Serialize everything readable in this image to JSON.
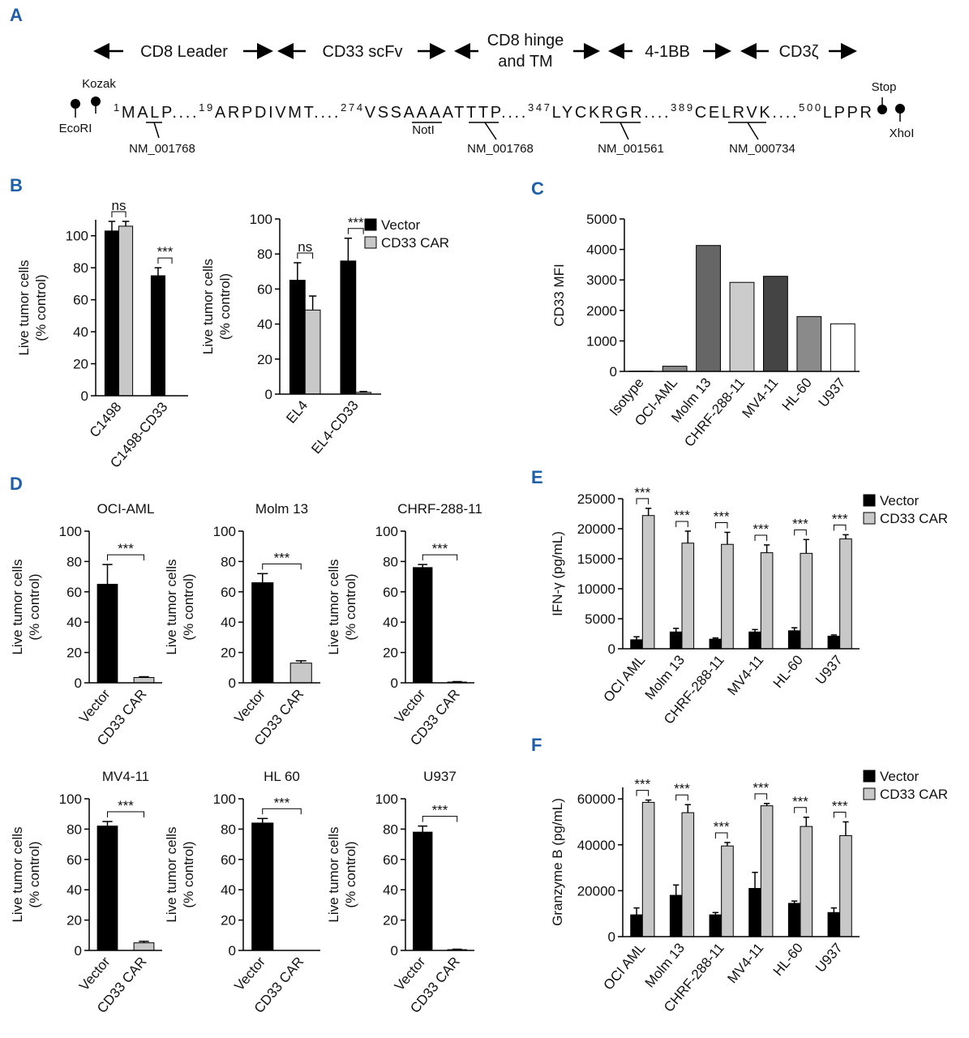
{
  "panels": [
    "A",
    "B",
    "C",
    "D",
    "E",
    "F"
  ],
  "diagram": {
    "domains": [
      "CD8 Leader",
      "CD33 scFv",
      [
        "CD8 hinge",
        "and TM"
      ],
      "4-1BB",
      "CD3ζ"
    ],
    "sites": {
      "kozak": "Kozak",
      "ecori": "EcoRI",
      "noti": "NotI",
      "stop": "Stop",
      "xhoi": "XhoI"
    },
    "sequence": [
      {
        "position": "1",
        "residues": "MALP...."
      },
      {
        "position": "19",
        "residues": "ARPDIVMT...."
      },
      {
        "position": "274",
        "residues": "VSSAAAATTTP...."
      },
      {
        "position": "347",
        "residues": "LYCKRGR...."
      },
      {
        "position": "389",
        "residues": "CELRVK...."
      },
      {
        "position": "500",
        "residues": "LPPR"
      }
    ],
    "accessions": [
      "NM_001768",
      "NM_001768",
      "NM_001561",
      "NM_000734"
    ]
  },
  "chart_data": [
    {
      "type": "bar",
      "ylabel": [
        "Live tumor cells",
        "(% control)"
      ],
      "categories": [
        "C1498",
        "C1498-CD33"
      ],
      "series": [
        {
          "color": "#000000",
          "values": [
            103,
            75
          ],
          "errors": [
            6,
            5
          ]
        },
        {
          "color": "#c8c8c8",
          "values": [
            106,
            0
          ],
          "errors": [
            3,
            null
          ]
        }
      ],
      "annotations": [
        "ns",
        "***"
      ],
      "ylim": [
        0,
        110
      ],
      "yticks": [
        0,
        20,
        40,
        60,
        80,
        100
      ]
    },
    {
      "type": "bar",
      "ylabel": [
        "Live tumor cells",
        "(% control)"
      ],
      "categories": [
        "EL4",
        "EL4-CD33"
      ],
      "series": [
        {
          "name": "Vector",
          "color": "#000000",
          "values": [
            65,
            76
          ],
          "errors": [
            10,
            13
          ]
        },
        {
          "name": "CD33 CAR",
          "color": "#c8c8c8",
          "values": [
            48,
            1
          ],
          "errors": [
            8,
            0.5
          ]
        }
      ],
      "annotations": [
        "ns",
        "***"
      ],
      "ylim": [
        0,
        100
      ],
      "yticks": [
        0,
        20,
        40,
        60,
        80,
        100
      ]
    },
    {
      "type": "bar",
      "ylabel": [
        "CD33 MFI"
      ],
      "categories": [
        "Isotype",
        "OCI-AML",
        "Molm 13",
        "CHRF-288-11",
        "MV4-11",
        "HL-60",
        "U937"
      ],
      "values": [
        10,
        170,
        4130,
        2920,
        3120,
        1800,
        1560
      ],
      "colors": [
        "#999999",
        "#888888",
        "#666666",
        "#cccccc",
        "#444444",
        "#8a8a8a",
        "#ffffff"
      ],
      "ylim": [
        0,
        5000
      ],
      "yticks": [
        0,
        1000,
        2000,
        3000,
        4000,
        5000
      ]
    },
    {
      "type": "bar",
      "title": "OCI-AML",
      "ylabel": [
        "Live tumor cells",
        "(% control)"
      ],
      "categories": [
        "Vector",
        "CD33 CAR"
      ],
      "values": [
        65,
        3.5
      ],
      "errors": [
        13,
        0.5
      ],
      "colors": [
        "#000000",
        "#c8c8c8"
      ],
      "annotations": [
        "***"
      ],
      "ylim": [
        0,
        100
      ],
      "yticks": [
        0,
        20,
        40,
        60,
        80,
        100
      ]
    },
    {
      "type": "bar",
      "title": "Molm 13",
      "ylabel": [
        "Live tumor cells",
        "(% control)"
      ],
      "categories": [
        "Vector",
        "CD33 CAR"
      ],
      "values": [
        66,
        13
      ],
      "errors": [
        6,
        1.5
      ],
      "colors": [
        "#000000",
        "#c8c8c8"
      ],
      "annotations": [
        "***"
      ],
      "ylim": [
        0,
        100
      ],
      "yticks": [
        0,
        20,
        40,
        60,
        80,
        100
      ]
    },
    {
      "type": "bar",
      "title": "CHRF-288-11",
      "ylabel": [
        "Live tumor cells",
        "(% control)"
      ],
      "categories": [
        "Vector",
        "CD33 CAR"
      ],
      "values": [
        76,
        0.5
      ],
      "errors": [
        2,
        0.3
      ],
      "colors": [
        "#000000",
        "#c8c8c8"
      ],
      "annotations": [
        "***"
      ],
      "ylim": [
        0,
        100
      ],
      "yticks": [
        0,
        20,
        40,
        60,
        80,
        100
      ]
    },
    {
      "type": "bar",
      "title": "MV4-11",
      "ylabel": [
        "Live tumor cells",
        "(% control)"
      ],
      "categories": [
        "Vector",
        "CD33 CAR"
      ],
      "values": [
        82,
        5
      ],
      "errors": [
        3,
        1
      ],
      "colors": [
        "#000000",
        "#c8c8c8"
      ],
      "annotations": [
        "***"
      ],
      "ylim": [
        0,
        100
      ],
      "yticks": [
        0,
        20,
        40,
        60,
        80,
        100
      ]
    },
    {
      "type": "bar",
      "title": "HL 60",
      "ylabel": [
        "Live tumor cells",
        "(% control)"
      ],
      "categories": [
        "Vector",
        "CD33 CAR"
      ],
      "values": [
        84,
        0
      ],
      "errors": [
        3,
        null
      ],
      "colors": [
        "#000000",
        "#c8c8c8"
      ],
      "annotations": [
        "***"
      ],
      "ylim": [
        0,
        100
      ],
      "yticks": [
        0,
        20,
        40,
        60,
        80,
        100
      ]
    },
    {
      "type": "bar",
      "title": "U937",
      "ylabel": [
        "Live tumor cells",
        "(% control)"
      ],
      "categories": [
        "Vector",
        "CD33 CAR"
      ],
      "values": [
        78,
        0.5
      ],
      "errors": [
        4,
        0.3
      ],
      "colors": [
        "#000000",
        "#c8c8c8"
      ],
      "annotations": [
        "***"
      ],
      "ylim": [
        0,
        100
      ],
      "yticks": [
        0,
        20,
        40,
        60,
        80,
        100
      ]
    },
    {
      "type": "bar",
      "ylabel": [
        "IFN-γ (pg/mL)"
      ],
      "categories": [
        "OCI AML",
        "Molm 13",
        "CHRF-288-11",
        "MV4-11",
        "HL-60",
        "U937"
      ],
      "series": [
        {
          "name": "Vector",
          "color": "#000000",
          "values": [
            1500,
            2800,
            1600,
            2800,
            3000,
            2100
          ],
          "errors": [
            500,
            600,
            200,
            400,
            500,
            200
          ]
        },
        {
          "name": "CD33 CAR",
          "color": "#c8c8c8",
          "values": [
            22200,
            17600,
            17400,
            16000,
            15900,
            18300
          ],
          "errors": [
            1200,
            2000,
            2000,
            1300,
            2300,
            700
          ]
        }
      ],
      "annotations": [
        "***",
        "***",
        "***",
        "***",
        "***",
        "***"
      ],
      "ylim": [
        0,
        25000
      ],
      "yticks": [
        0,
        5000,
        10000,
        15000,
        20000,
        25000
      ]
    },
    {
      "type": "bar",
      "ylabel": [
        "Granzyme B (pg/mL)"
      ],
      "categories": [
        "OCI AML",
        "Molm 13",
        "CHRF-288-11",
        "MV4-11",
        "HL-60",
        "U937"
      ],
      "series": [
        {
          "name": "Vector",
          "color": "#000000",
          "values": [
            9500,
            18000,
            9500,
            21000,
            14500,
            10500
          ],
          "errors": [
            3000,
            4500,
            1000,
            7000,
            1000,
            2000
          ]
        },
        {
          "name": "CD33 CAR",
          "color": "#c8c8c8",
          "values": [
            58500,
            54000,
            39500,
            57000,
            48000,
            44000
          ],
          "errors": [
            1000,
            3500,
            1500,
            1000,
            4000,
            6000
          ]
        }
      ],
      "annotations": [
        "***",
        "***",
        "***",
        "***",
        "***",
        "***"
      ],
      "ylim": [
        0,
        65000
      ],
      "yticks": [
        0,
        20000,
        40000,
        60000
      ]
    }
  ]
}
